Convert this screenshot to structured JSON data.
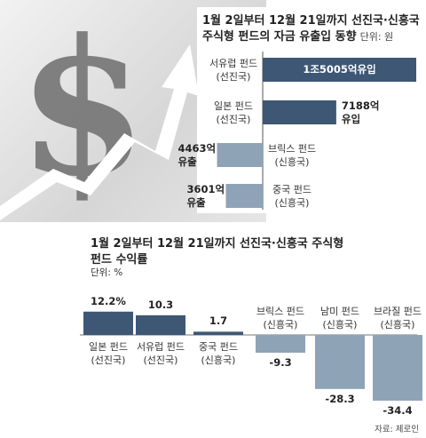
{
  "chart_data": [
    {
      "type": "bar",
      "orientation": "horizontal",
      "title": "1월 2일부터 12월 21일까지 선진국·신흥국 주식형 펀드의 자금 유출입 동향",
      "unit": "단위: 원",
      "categories": [
        [
          "서유럽 펀드",
          "(선진국)"
        ],
        [
          "일본 펀드",
          "(선진국)"
        ],
        [
          "브릭스 펀드",
          "(신흥국)"
        ],
        [
          "중국 펀드",
          "(신흥국)"
        ]
      ],
      "values": [
        15005,
        7188,
        -4463,
        -3601
      ],
      "value_unit": "억원",
      "value_labels": [
        [
          "1조5005억유입"
        ],
        [
          "7188억",
          "유입"
        ],
        [
          "4463억",
          "유출"
        ],
        [
          "3601억",
          "유출"
        ]
      ],
      "colors": {
        "positive": "#3d5775",
        "negative": "#8fa3b7"
      }
    },
    {
      "type": "bar",
      "title": "1월 2일부터 12월 21일까지 선진국·신흥국 주식형",
      "title_line2": "펀드 수익률",
      "unit": "단위: %",
      "categories": [
        [
          "일본 펀드",
          "(선진국)"
        ],
        [
          "서유럽 펀드",
          "(선진국)"
        ],
        [
          "중국 펀드",
          "(신흥국)"
        ],
        [
          "브릭스 펀드",
          "(신흥국)"
        ],
        [
          "남미 펀드",
          "(신흥국)"
        ],
        [
          "브라질 펀드",
          "(신흥국)"
        ]
      ],
      "values": [
        12.2,
        10.3,
        1.7,
        -9.3,
        -28.3,
        -34.4
      ],
      "value_labels": [
        "12.2%",
        "10.3",
        "1.7",
        "-9.3",
        "-28.3",
        "-34.4"
      ],
      "colors": {
        "positive": "#3d5775",
        "negative": "#8fa3b7"
      }
    }
  ],
  "source": "자료: 제로인"
}
